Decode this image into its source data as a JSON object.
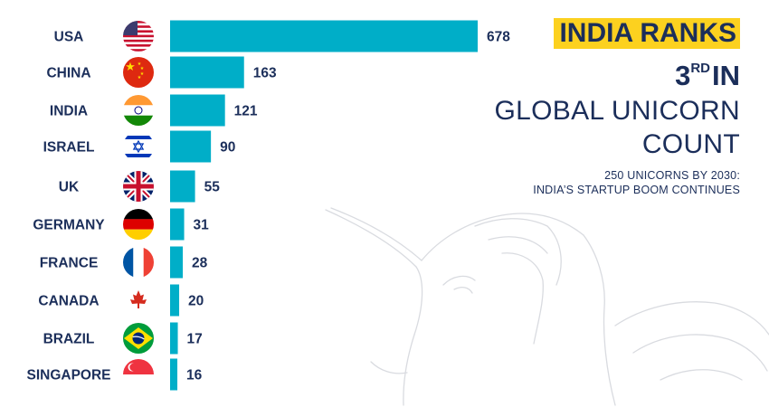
{
  "headline": {
    "line1": "INDIA RANKS",
    "rank_number": "3",
    "rank_suffix": "RD",
    "rank_word": "IN",
    "line3": "GLOBAL UNICORN",
    "line4": "COUNT",
    "subtitle_line1": "250 UNICORNS BY 2030:",
    "subtitle_line2": "INDIA’S STARTUP BOOM CONTINUES"
  },
  "colors": {
    "bar": "#00aec8",
    "text": "#1b2e5a",
    "highlight": "#fcd11f"
  },
  "chart_data": {
    "type": "bar",
    "orientation": "horizontal",
    "categories": [
      "USA",
      "CHINA",
      "INDIA",
      "ISRAEL",
      "UK",
      "GERMANY",
      "FRANCE",
      "CANADA",
      "BRAZIL",
      "SINGAPORE"
    ],
    "values": [
      678,
      163,
      121,
      90,
      55,
      31,
      28,
      20,
      17,
      16
    ],
    "flags": [
      "usa-flag-icon",
      "china-flag-icon",
      "india-flag-icon",
      "israel-flag-icon",
      "uk-flag-icon",
      "germany-flag-icon",
      "france-flag-icon",
      "canada-flag-icon",
      "brazil-flag-icon",
      "singapore-flag-icon"
    ],
    "title": "",
    "xlabel": "",
    "ylabel": "",
    "grid": false,
    "legend": "none"
  }
}
